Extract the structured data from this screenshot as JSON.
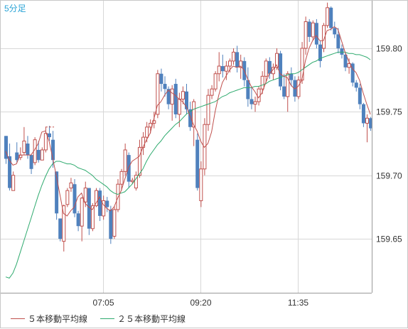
{
  "chart_data": {
    "type": "candlestick",
    "title": "5分足",
    "y_ticks": [
      159.65,
      159.7,
      159.75,
      159.8
    ],
    "x_ticks": [
      "07:05",
      "09:20",
      "11:35"
    ],
    "ylim": [
      159.6075,
      159.8375
    ],
    "grid": true,
    "legend_position": "bottom-left",
    "colors": {
      "up_candle": "#c0504d",
      "down_candle": "#4f81bd",
      "ma5": "#c0504d",
      "ma25": "#2eaa6e",
      "grid": "#d7d7d7",
      "title": "#29a3d6",
      "dashed": "#c0504d"
    },
    "series": [
      {
        "name": "５本移動平均線",
        "kind": "ma5"
      },
      {
        "name": "２５本移動平均線",
        "kind": "ma25"
      }
    ],
    "candles": [
      [
        159.731,
        159.731,
        159.709,
        159.713
      ],
      [
        159.715,
        159.725,
        159.688,
        159.69
      ],
      [
        159.688,
        159.703,
        159.688,
        159.7
      ],
      [
        159.718,
        159.726,
        159.71,
        159.712
      ],
      [
        159.714,
        159.722,
        159.712,
        159.716
      ],
      [
        159.718,
        159.738,
        159.716,
        159.727
      ],
      [
        159.725,
        159.731,
        159.713,
        159.716
      ],
      [
        159.716,
        159.716,
        159.701,
        159.705
      ],
      [
        159.71,
        159.73,
        159.708,
        159.728
      ],
      [
        159.72,
        159.727,
        159.71,
        159.712
      ],
      [
        159.712,
        159.722,
        159.712,
        159.72
      ],
      [
        159.72,
        159.738,
        159.718,
        159.733
      ],
      [
        159.733,
        159.739,
        159.727,
        159.73
      ],
      [
        159.728,
        159.735,
        159.706,
        159.712
      ],
      [
        159.703,
        159.703,
        159.665,
        159.67
      ],
      [
        159.666,
        159.666,
        159.648,
        159.65
      ],
      [
        159.648,
        159.677,
        159.64,
        159.676
      ],
      [
        159.677,
        159.69,
        159.675,
        159.688
      ],
      [
        159.69,
        159.698,
        159.687,
        159.694
      ],
      [
        159.693,
        159.697,
        159.667,
        159.67
      ],
      [
        159.67,
        159.672,
        159.656,
        159.66
      ],
      [
        159.66,
        159.683,
        159.648,
        159.682
      ],
      [
        159.679,
        159.695,
        159.675,
        159.69
      ],
      [
        159.69,
        159.69,
        159.653,
        159.658
      ],
      [
        159.658,
        159.678,
        159.656,
        159.676
      ],
      [
        159.676,
        159.69,
        159.675,
        159.688
      ],
      [
        159.688,
        159.69,
        159.664,
        159.668
      ],
      [
        159.668,
        159.684,
        159.665,
        159.68
      ],
      [
        159.68,
        159.683,
        159.671,
        159.675
      ],
      [
        159.673,
        159.676,
        159.646,
        159.65
      ],
      [
        159.652,
        159.676,
        159.65,
        159.673
      ],
      [
        159.673,
        159.697,
        159.671,
        159.693
      ],
      [
        159.693,
        159.705,
        159.688,
        159.703
      ],
      [
        159.703,
        159.725,
        159.7,
        159.72
      ],
      [
        159.716,
        159.718,
        159.69,
        159.695
      ],
      [
        159.695,
        159.698,
        159.693,
        159.696
      ],
      [
        159.69,
        159.703,
        159.688,
        159.7
      ],
      [
        159.7,
        159.728,
        159.698,
        159.722
      ],
      [
        159.722,
        159.734,
        159.716,
        159.73
      ],
      [
        159.73,
        159.742,
        159.726,
        159.738
      ],
      [
        159.738,
        159.744,
        159.733,
        159.741
      ],
      [
        159.741,
        159.75,
        159.737,
        159.743
      ],
      [
        159.748,
        159.783,
        159.745,
        159.78
      ],
      [
        159.78,
        159.784,
        159.766,
        159.772
      ],
      [
        159.772,
        159.778,
        159.762,
        159.768
      ],
      [
        159.768,
        159.77,
        159.752,
        159.756
      ],
      [
        159.756,
        159.771,
        159.743,
        159.768
      ],
      [
        159.772,
        159.776,
        159.745,
        159.748
      ],
      [
        159.748,
        159.765,
        159.738,
        159.76
      ],
      [
        159.76,
        159.77,
        159.756,
        159.766
      ],
      [
        159.766,
        159.772,
        159.748,
        159.752
      ],
      [
        159.752,
        159.758,
        159.735,
        159.738
      ],
      [
        159.738,
        159.76,
        159.723,
        159.758
      ],
      [
        159.728,
        159.733,
        159.688,
        159.69
      ],
      [
        159.68,
        159.711,
        159.675,
        159.705
      ],
      [
        159.705,
        159.745,
        159.7,
        159.74
      ],
      [
        159.74,
        159.768,
        159.735,
        159.763
      ],
      [
        159.763,
        159.771,
        159.76,
        159.768
      ],
      [
        159.768,
        159.782,
        159.766,
        159.78
      ],
      [
        159.78,
        159.797,
        159.774,
        159.786
      ],
      [
        159.786,
        159.795,
        159.777,
        159.782
      ],
      [
        159.782,
        159.79,
        159.775,
        159.786
      ],
      [
        159.786,
        159.792,
        159.781,
        159.79
      ],
      [
        159.79,
        159.8,
        159.787,
        159.797
      ],
      [
        159.797,
        159.802,
        159.781,
        159.785
      ],
      [
        159.785,
        159.795,
        159.776,
        159.79
      ],
      [
        159.79,
        159.793,
        159.77,
        159.775
      ],
      [
        159.775,
        159.785,
        159.754,
        159.76
      ],
      [
        159.76,
        159.77,
        159.752,
        159.756
      ],
      [
        159.756,
        159.762,
        159.75,
        159.758
      ],
      [
        159.758,
        159.77,
        159.755,
        159.768
      ],
      [
        159.768,
        159.782,
        159.764,
        159.778
      ],
      [
        159.778,
        159.792,
        159.773,
        159.79
      ],
      [
        159.79,
        159.793,
        159.776,
        159.78
      ],
      [
        159.78,
        159.788,
        159.775,
        159.785
      ],
      [
        159.785,
        159.8,
        159.783,
        159.796
      ],
      [
        159.796,
        159.798,
        159.767,
        159.77
      ],
      [
        159.77,
        159.78,
        159.76,
        159.762
      ],
      [
        159.762,
        159.782,
        159.75,
        159.78
      ],
      [
        159.78,
        159.785,
        159.77,
        159.775
      ],
      [
        159.775,
        159.778,
        159.758,
        159.762
      ],
      [
        159.762,
        159.778,
        159.76,
        159.775
      ],
      [
        159.775,
        159.805,
        159.772,
        159.8
      ],
      [
        159.8,
        159.825,
        159.795,
        159.821
      ],
      [
        159.821,
        159.823,
        159.805,
        159.809
      ],
      [
        159.809,
        159.822,
        159.806,
        159.82
      ],
      [
        159.82,
        159.823,
        159.8,
        159.803
      ],
      [
        159.803,
        159.806,
        159.785,
        159.79
      ],
      [
        159.8,
        159.82,
        159.797,
        159.818
      ],
      [
        159.818,
        159.836,
        159.816,
        159.832
      ],
      [
        159.832,
        159.833,
        159.814,
        159.816
      ],
      [
        159.816,
        159.821,
        159.808,
        159.811
      ],
      [
        159.811,
        159.816,
        159.796,
        159.8
      ],
      [
        159.8,
        159.803,
        159.792,
        159.795
      ],
      [
        159.795,
        159.797,
        159.782,
        159.785
      ],
      [
        159.785,
        159.792,
        159.78,
        159.788
      ],
      [
        159.788,
        159.789,
        159.77,
        159.773
      ],
      [
        159.773,
        159.775,
        159.766,
        159.769
      ],
      [
        159.769,
        159.772,
        159.752,
        159.756
      ],
      [
        159.756,
        159.757,
        159.738,
        159.741
      ],
      [
        159.741,
        159.748,
        159.726,
        159.745
      ],
      [
        159.745,
        159.746,
        159.735,
        159.737
      ]
    ],
    "ma5": [
      159.719,
      159.712,
      159.708,
      159.709,
      159.716,
      159.716,
      159.716,
      159.716,
      159.72,
      159.725,
      159.734,
      159.735,
      159.727,
      159.714,
      159.7,
      159.685,
      159.67,
      159.668,
      159.672,
      159.675,
      159.683,
      159.686,
      159.678,
      159.675,
      159.673,
      159.678,
      159.683,
      159.677,
      159.674,
      159.672,
      159.675,
      159.682,
      159.688,
      159.697,
      159.706,
      159.711,
      159.713,
      159.715,
      159.722,
      159.728,
      159.733,
      159.744,
      159.755,
      159.758,
      159.763,
      159.767,
      159.765,
      159.763,
      159.76,
      159.758,
      159.754,
      159.747,
      159.74,
      159.735,
      159.727,
      159.722,
      159.725,
      159.734,
      159.75,
      159.763,
      159.773,
      159.778,
      159.783,
      159.786,
      159.785,
      159.786,
      159.783,
      159.776,
      159.77,
      159.766,
      159.761,
      159.765,
      159.773,
      159.78,
      159.783,
      159.787,
      159.78,
      159.778,
      159.777,
      159.771,
      159.768,
      159.77,
      159.775,
      159.79,
      159.8,
      159.806,
      159.81,
      159.806,
      159.806,
      159.814,
      159.815,
      159.817,
      159.815,
      159.806,
      159.797,
      159.79,
      159.784,
      159.781,
      159.775,
      159.765,
      159.756,
      159.748
    ],
    "ma25": [
      159.62,
      159.619,
      159.623,
      159.63,
      159.639,
      159.648,
      159.657,
      159.666,
      159.675,
      159.684,
      159.692,
      159.699,
      159.705,
      159.709,
      159.711,
      159.711,
      159.71,
      159.709,
      159.709,
      159.708,
      159.706,
      159.705,
      159.704,
      159.702,
      159.7,
      159.697,
      159.695,
      159.693,
      159.691,
      159.688,
      159.686,
      159.685,
      159.686,
      159.687,
      159.69,
      159.693,
      159.697,
      159.701,
      159.705,
      159.711,
      159.716,
      159.72,
      159.724,
      159.727,
      159.731,
      159.734,
      159.737,
      159.74,
      159.742,
      159.745,
      159.748,
      159.75,
      159.752,
      159.753,
      159.754,
      159.755,
      159.756,
      159.757,
      159.758,
      159.76,
      159.762,
      159.763,
      159.765,
      159.766,
      159.767,
      159.768,
      159.769,
      159.769,
      159.769,
      159.77,
      159.77,
      159.771,
      159.772,
      159.774,
      159.775,
      159.776,
      159.777,
      159.778,
      159.779,
      159.78,
      159.78,
      159.781,
      159.783,
      159.785,
      159.787,
      159.789,
      159.79,
      159.792,
      159.793,
      159.794,
      159.795,
      159.796,
      159.797,
      159.797,
      159.797,
      159.796,
      159.796,
      159.795,
      159.795,
      159.794,
      159.793,
      159.791
    ],
    "dashed_level": {
      "value": 159.738,
      "from_index": 11,
      "to_index": 13
    }
  }
}
